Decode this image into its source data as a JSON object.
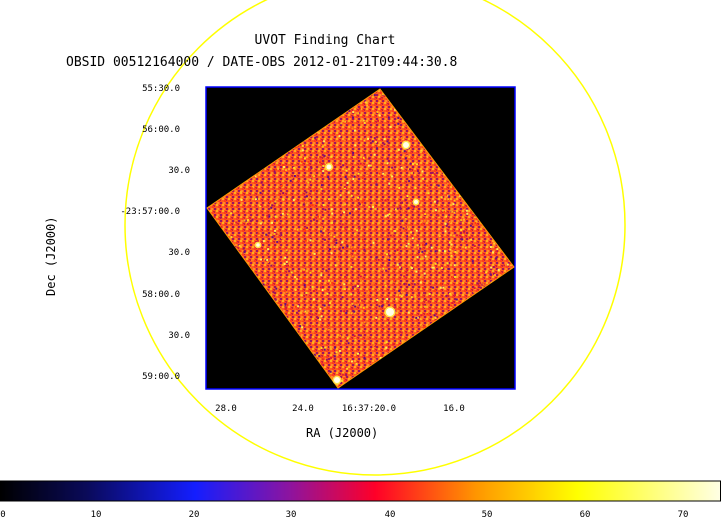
{
  "chart_data": {
    "type": "heatmap",
    "title": "UVOT Finding Chart",
    "subtitle": "OBSID 00512164000 / DATE-OBS 2012-01-21T09:44:30.8",
    "xlabel": "RA (J2000)",
    "ylabel": "Dec (J2000)",
    "x_ticks": [
      "28.0",
      "24.0",
      "16:37:20.0",
      "16.0"
    ],
    "y_ticks": [
      "55:30.0",
      "56:00.0",
      "30.0",
      "-23:57:00.0",
      "30.0",
      "58:00.0",
      "30.0",
      "59:00.0"
    ],
    "colorbar": {
      "ticks": [
        "0",
        "10",
        "20",
        "30",
        "40",
        "50",
        "60",
        "70"
      ],
      "range": [
        0,
        73
      ],
      "colormap": "heat (black-blue-red-yellow-white)"
    },
    "sources_count_visible": 6
  },
  "colors": {
    "circle": "#ffff00",
    "frame": "#0000ff",
    "field": "#000000",
    "noise_base": "#ff5a1e"
  }
}
